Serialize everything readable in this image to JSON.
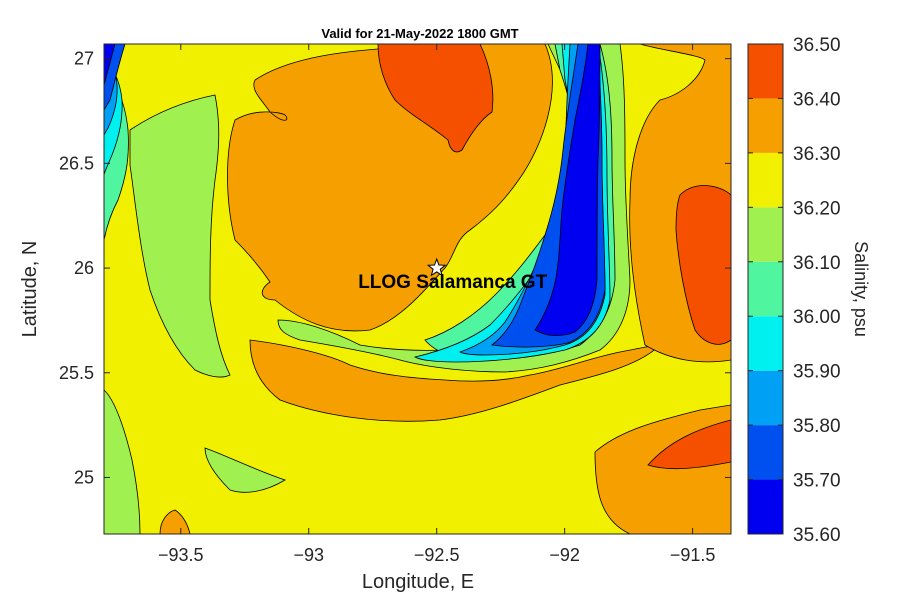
{
  "chart_data": {
    "type": "contour",
    "title": "Valid for 21-May-2022 1800 GMT",
    "xlabel": "Longitude, E",
    "ylabel": "Latitude, N",
    "xlim": [
      -93.8,
      -91.35
    ],
    "ylim": [
      24.73,
      27.07
    ],
    "xticks": [
      -93.5,
      -93,
      -92.5,
      -92,
      -91.5
    ],
    "xtick_labels": [
      "−93.5",
      "−93",
      "−92.5",
      "−92",
      "−91.5"
    ],
    "yticks": [
      25,
      25.5,
      26,
      26.5,
      27
    ],
    "ytick_labels": [
      "25",
      "25.5",
      "26",
      "26.5",
      "27"
    ],
    "colorbar": {
      "label": "Salinity, psu",
      "levels": [
        35.6,
        35.7,
        35.8,
        35.9,
        36.0,
        36.1,
        36.2,
        36.3,
        36.4,
        36.5
      ],
      "tick_labels": [
        "35.60",
        "35.70",
        "35.80",
        "35.90",
        "36.00",
        "36.10",
        "36.20",
        "36.30",
        "36.40",
        "36.50"
      ],
      "colors": [
        "#0000f0",
        "#0050f0",
        "#00a0f5",
        "#00f0f0",
        "#50f5a0",
        "#a0f050",
        "#f0f000",
        "#f5a000",
        "#f55000"
      ]
    },
    "annotation": {
      "text": "LLOG Salamanca GT",
      "marker": "star",
      "lon": -92.5,
      "lat": 26.0
    },
    "grid": false
  }
}
